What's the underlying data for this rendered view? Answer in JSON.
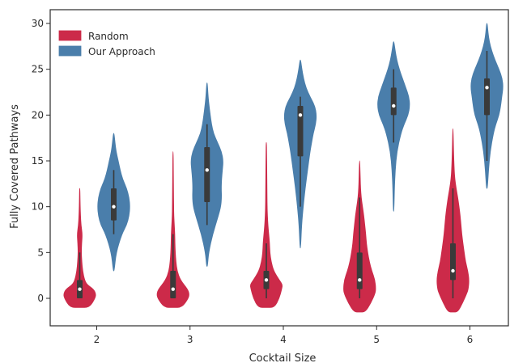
{
  "chart_data": {
    "type": "violin",
    "title": "",
    "xlabel": "Cocktail Size",
    "ylabel": "Fully Covered Pathways",
    "categories": [
      "2",
      "3",
      "4",
      "5",
      "6"
    ],
    "ylim": [
      -3,
      31.5
    ],
    "yticks": [
      0,
      5,
      10,
      15,
      20,
      25,
      30
    ],
    "grid": false,
    "legend_position": "top-left",
    "series": [
      {
        "name": "Random",
        "color": "#cc2a49",
        "stats": [
          {
            "category": "2",
            "min": -1,
            "q1": 0,
            "median": 1,
            "q3": 2,
            "max": 12,
            "whisker_low": 0,
            "whisker_high": 5,
            "profile": [
              [
                -1,
                0.6
              ],
              [
                0,
                0.95
              ],
              [
                0.5,
                1.0
              ],
              [
                1,
                0.85
              ],
              [
                1.5,
                0.45
              ],
              [
                2,
                0.3
              ],
              [
                3,
                0.18
              ],
              [
                4,
                0.13
              ],
              [
                5,
                0.1
              ],
              [
                6,
                0.12
              ],
              [
                7,
                0.16
              ],
              [
                8,
                0.08
              ],
              [
                9,
                0.05
              ],
              [
                10,
                0.03
              ],
              [
                11,
                0.02
              ],
              [
                12,
                0.01
              ]
            ]
          },
          {
            "category": "3",
            "min": -1,
            "q1": 0,
            "median": 1,
            "q3": 3,
            "max": 16,
            "whisker_low": 0,
            "whisker_high": 7,
            "profile": [
              [
                -1,
                0.55
              ],
              [
                0,
                0.95
              ],
              [
                0.5,
                1.0
              ],
              [
                1,
                0.9
              ],
              [
                2,
                0.45
              ],
              [
                3,
                0.25
              ],
              [
                4,
                0.18
              ],
              [
                5,
                0.14
              ],
              [
                6,
                0.12
              ],
              [
                7,
                0.11
              ],
              [
                8,
                0.08
              ],
              [
                9,
                0.05
              ],
              [
                10,
                0.04
              ],
              [
                12,
                0.03
              ],
              [
                14,
                0.02
              ],
              [
                16,
                0.01
              ]
            ]
          },
          {
            "category": "4",
            "min": -1,
            "q1": 1,
            "median": 2,
            "q3": 3,
            "max": 17,
            "whisker_low": 0,
            "whisker_high": 6,
            "profile": [
              [
                -1,
                0.5
              ],
              [
                0,
                0.8
              ],
              [
                1,
                0.95
              ],
              [
                1.5,
                1.0
              ],
              [
                2,
                0.8
              ],
              [
                3,
                0.45
              ],
              [
                4,
                0.3
              ],
              [
                5,
                0.22
              ],
              [
                6,
                0.2
              ],
              [
                7,
                0.15
              ],
              [
                8,
                0.1
              ],
              [
                9,
                0.07
              ],
              [
                10,
                0.05
              ],
              [
                12,
                0.04
              ],
              [
                14,
                0.03
              ],
              [
                16,
                0.02
              ],
              [
                17,
                0.01
              ]
            ]
          },
          {
            "category": "5",
            "min": -1.5,
            "q1": 1,
            "median": 2,
            "q3": 5,
            "max": 15,
            "whisker_low": 0,
            "whisker_high": 11,
            "profile": [
              [
                -1.5,
                0.35
              ],
              [
                -0.5,
                0.7
              ],
              [
                0.5,
                0.95
              ],
              [
                1,
                1.0
              ],
              [
                2,
                0.95
              ],
              [
                3,
                0.75
              ],
              [
                4,
                0.6
              ],
              [
                5,
                0.5
              ],
              [
                6,
                0.42
              ],
              [
                7,
                0.38
              ],
              [
                8,
                0.32
              ],
              [
                9,
                0.26
              ],
              [
                10,
                0.18
              ],
              [
                11,
                0.1
              ],
              [
                12,
                0.06
              ],
              [
                13,
                0.04
              ],
              [
                15,
                0.01
              ]
            ]
          },
          {
            "category": "6",
            "min": -1.5,
            "q1": 2,
            "median": 3,
            "q3": 6,
            "max": 18.5,
            "whisker_low": 0,
            "whisker_high": 12,
            "profile": [
              [
                -1.5,
                0.3
              ],
              [
                -0.5,
                0.6
              ],
              [
                0.5,
                0.85
              ],
              [
                1,
                0.95
              ],
              [
                2,
                1.0
              ],
              [
                3,
                0.92
              ],
              [
                4,
                0.78
              ],
              [
                5,
                0.7
              ],
              [
                6,
                0.62
              ],
              [
                7,
                0.55
              ],
              [
                8,
                0.5
              ],
              [
                9,
                0.45
              ],
              [
                10,
                0.38
              ],
              [
                11,
                0.3
              ],
              [
                12,
                0.2
              ],
              [
                13,
                0.12
              ],
              [
                14,
                0.08
              ],
              [
                16,
                0.04
              ],
              [
                18.5,
                0.01
              ]
            ]
          }
        ]
      },
      {
        "name": "Our Approach",
        "color": "#4a7eab",
        "stats": [
          {
            "category": "2",
            "min": 3,
            "q1": 8.5,
            "median": 10,
            "q3": 12,
            "max": 18,
            "whisker_low": 7,
            "whisker_high": 14,
            "profile": [
              [
                3,
                0.03
              ],
              [
                5,
                0.15
              ],
              [
                7,
                0.5
              ],
              [
                8,
                0.8
              ],
              [
                9,
                0.95
              ],
              [
                10,
                1.0
              ],
              [
                11,
                0.95
              ],
              [
                12,
                0.8
              ],
              [
                13,
                0.55
              ],
              [
                14,
                0.4
              ],
              [
                15,
                0.28
              ],
              [
                16,
                0.15
              ],
              [
                17,
                0.08
              ],
              [
                18,
                0.02
              ]
            ]
          },
          {
            "category": "3",
            "min": 3.5,
            "q1": 10.5,
            "median": 14,
            "q3": 16.5,
            "max": 23.5,
            "whisker_low": 8,
            "whisker_high": 19,
            "profile": [
              [
                3.5,
                0.03
              ],
              [
                5,
                0.1
              ],
              [
                7,
                0.35
              ],
              [
                9,
                0.7
              ],
              [
                10,
                0.85
              ],
              [
                11,
                0.9
              ],
              [
                12,
                0.88
              ],
              [
                13,
                0.9
              ],
              [
                14,
                0.95
              ],
              [
                15,
                1.0
              ],
              [
                16,
                0.9
              ],
              [
                17,
                0.65
              ],
              [
                18,
                0.4
              ],
              [
                19,
                0.28
              ],
              [
                20,
                0.2
              ],
              [
                21,
                0.13
              ],
              [
                22,
                0.07
              ],
              [
                23.5,
                0.02
              ]
            ]
          },
          {
            "category": "4",
            "min": 5.5,
            "q1": 15.5,
            "median": 20,
            "q3": 21,
            "max": 26,
            "whisker_low": 10,
            "whisker_high": 22,
            "profile": [
              [
                5.5,
                0.02
              ],
              [
                8,
                0.08
              ],
              [
                10,
                0.18
              ],
              [
                12,
                0.3
              ],
              [
                14,
                0.45
              ],
              [
                16,
                0.6
              ],
              [
                17,
                0.7
              ],
              [
                18,
                0.8
              ],
              [
                19,
                0.95
              ],
              [
                20,
                1.0
              ],
              [
                21,
                0.9
              ],
              [
                22,
                0.6
              ],
              [
                23,
                0.35
              ],
              [
                24,
                0.2
              ],
              [
                25,
                0.1
              ],
              [
                26,
                0.02
              ]
            ]
          },
          {
            "category": "5",
            "min": 9.5,
            "q1": 20,
            "median": 21,
            "q3": 23,
            "max": 28,
            "whisker_low": 17,
            "whisker_high": 25,
            "profile": [
              [
                9.5,
                0.02
              ],
              [
                12,
                0.05
              ],
              [
                14,
                0.1
              ],
              [
                16,
                0.2
              ],
              [
                18,
                0.45
              ],
              [
                19,
                0.65
              ],
              [
                20,
                0.9
              ],
              [
                21,
                1.0
              ],
              [
                22,
                0.95
              ],
              [
                23,
                0.75
              ],
              [
                24,
                0.55
              ],
              [
                25,
                0.35
              ],
              [
                26,
                0.2
              ],
              [
                27,
                0.1
              ],
              [
                28,
                0.02
              ]
            ]
          },
          {
            "category": "6",
            "min": 12,
            "q1": 20,
            "median": 23,
            "q3": 24,
            "max": 30,
            "whisker_low": 15,
            "whisker_high": 27,
            "profile": [
              [
                12,
                0.03
              ],
              [
                14,
                0.1
              ],
              [
                16,
                0.2
              ],
              [
                18,
                0.4
              ],
              [
                19,
                0.55
              ],
              [
                20,
                0.75
              ],
              [
                21,
                0.85
              ],
              [
                22,
                0.92
              ],
              [
                23,
                1.0
              ],
              [
                24,
                0.95
              ],
              [
                25,
                0.75
              ],
              [
                26,
                0.5
              ],
              [
                27,
                0.3
              ],
              [
                28,
                0.15
              ],
              [
                29,
                0.07
              ],
              [
                30,
                0.02
              ]
            ]
          }
        ]
      }
    ]
  }
}
